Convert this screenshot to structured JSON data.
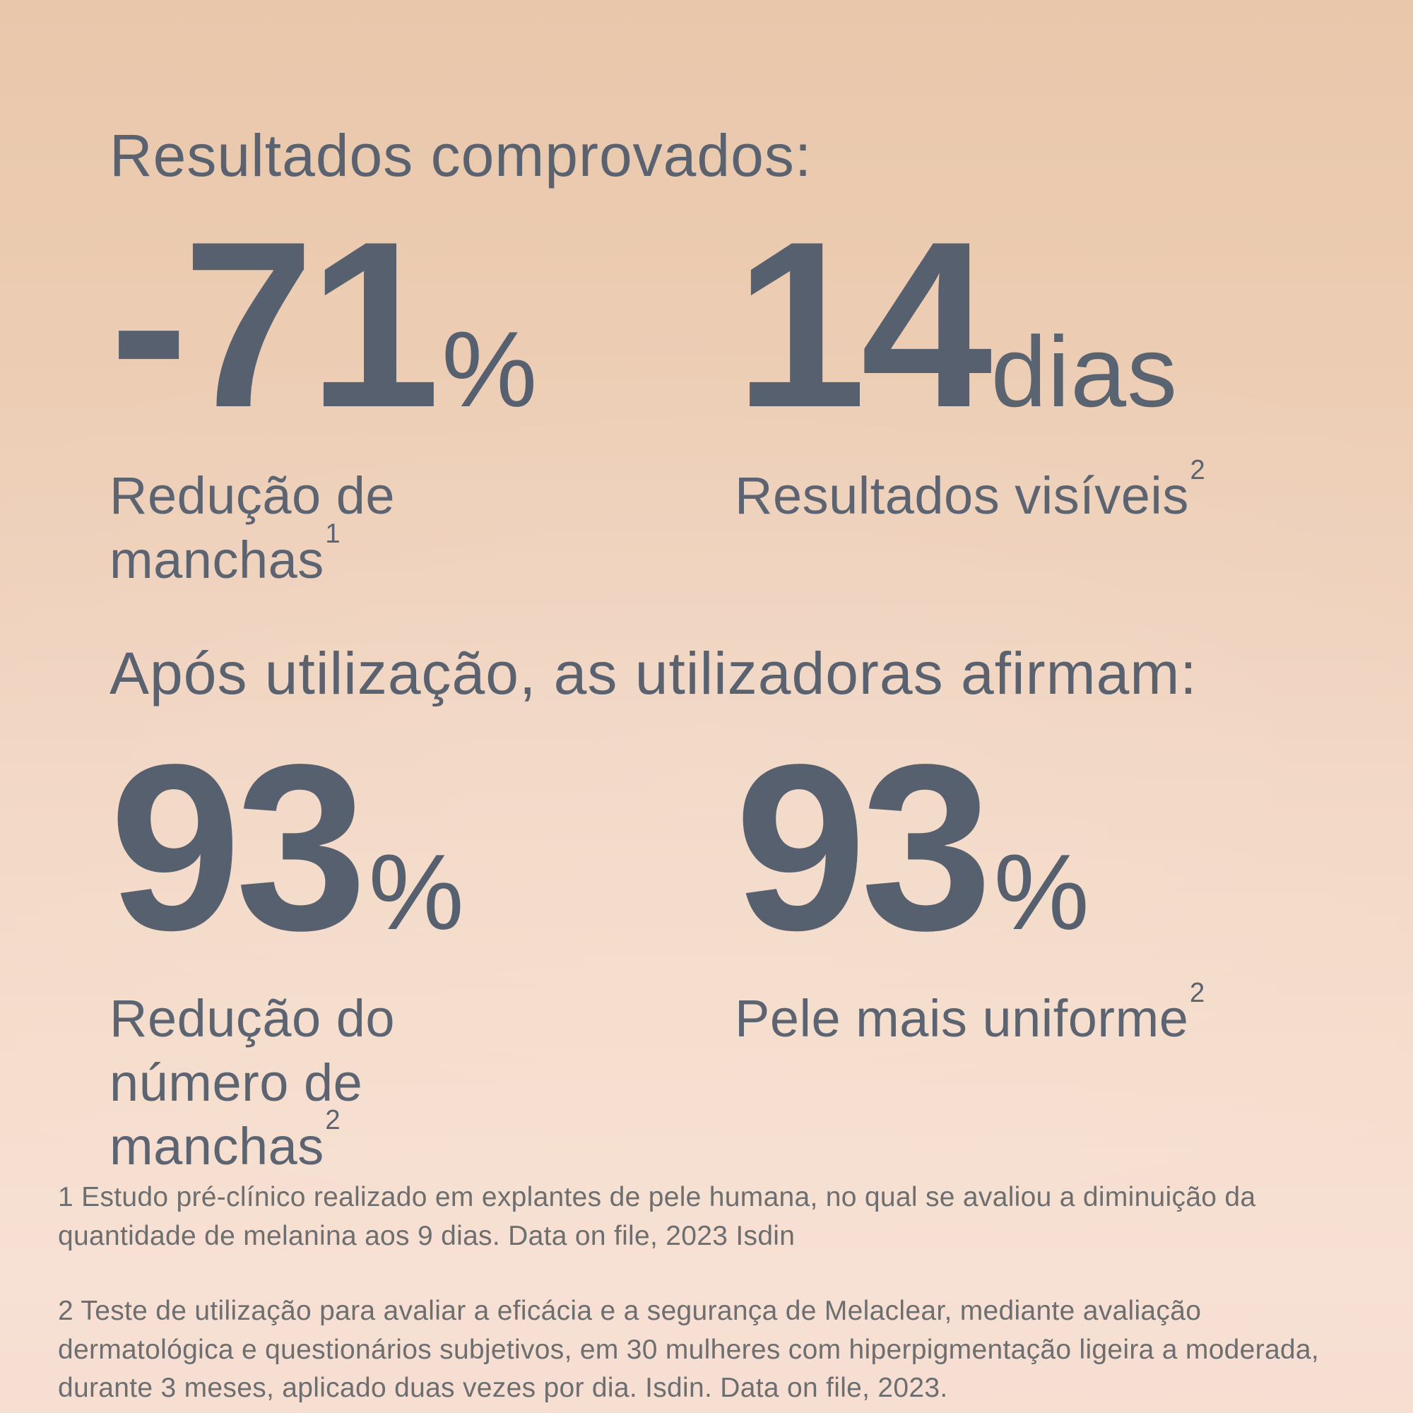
{
  "page": {
    "background_top_color": "#e9c7ab",
    "background_bottom_color": "#f6ded1",
    "heading_color": "#5a6270",
    "stat_color": "#57606e",
    "footnote_color": "#6d6e70"
  },
  "sections": {
    "proven": {
      "title": "Resultados comprovados:",
      "stats": [
        {
          "value": "-71",
          "unit": "%",
          "label": "Redução de manchas",
          "footnote_ref": "1"
        },
        {
          "value": "14",
          "unit": "dias",
          "label": "Resultados visíveis",
          "footnote_ref": "2"
        }
      ]
    },
    "users": {
      "title": "Após utilização, as utilizadoras afirmam:",
      "stats": [
        {
          "value": "93",
          "unit": "%",
          "label": "Redução do número de manchas",
          "footnote_ref": "2"
        },
        {
          "value": "93",
          "unit": "%",
          "label": "Pele mais uniforme",
          "footnote_ref": "2"
        }
      ]
    }
  },
  "footnotes": [
    "1  Estudo pré-clínico realizado em explantes de pele humana, no qual se avaliou a diminuição da quantidade de melanina aos 9 dias. Data on file, 2023 Isdin",
    "2 Teste de utilização para avaliar a eficácia e a segurança de Melaclear, mediante avaliação dermatológica e questionários subjetivos, em 30 mulheres com hiperpigmentação ligeira a moderada, durante 3 meses, aplicado duas vezes por dia. Isdin. Data on file, 2023."
  ]
}
